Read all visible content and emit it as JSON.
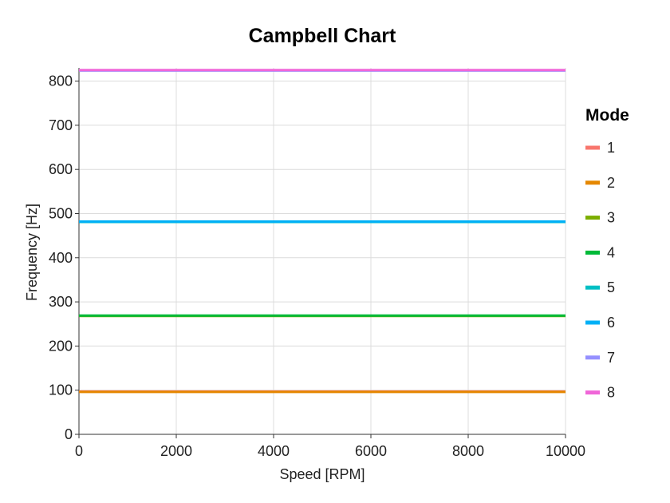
{
  "chart_data": {
    "type": "line",
    "title": "Campbell Chart",
    "xlabel": "Speed [RPM]",
    "ylabel": "Frequency [Hz]",
    "xlim": [
      0,
      10000
    ],
    "ylim": [
      0,
      830
    ],
    "xticks": [
      0,
      2000,
      4000,
      6000,
      8000,
      10000
    ],
    "yticks": [
      0,
      100,
      200,
      300,
      400,
      500,
      600,
      700,
      800
    ],
    "grid": true,
    "legend": {
      "title": "Mode",
      "position": "right"
    },
    "x": [
      0,
      10000
    ],
    "series": [
      {
        "name": "1",
        "color": "#F8766D",
        "values": [
          97,
          97
        ]
      },
      {
        "name": "2",
        "color": "#E58700",
        "values": [
          96,
          96
        ]
      },
      {
        "name": "3",
        "color": "#7CAE00",
        "values": [
          268,
          268
        ]
      },
      {
        "name": "4",
        "color": "#00BA38",
        "values": [
          269,
          269
        ]
      },
      {
        "name": "5",
        "color": "#00BFC4",
        "values": [
          481,
          481
        ]
      },
      {
        "name": "6",
        "color": "#00B0F6",
        "values": [
          482,
          482
        ]
      },
      {
        "name": "7",
        "color": "#9590FF",
        "values": [
          824,
          824
        ]
      },
      {
        "name": "8",
        "color": "#F066D8",
        "values": [
          825,
          825
        ]
      }
    ]
  }
}
